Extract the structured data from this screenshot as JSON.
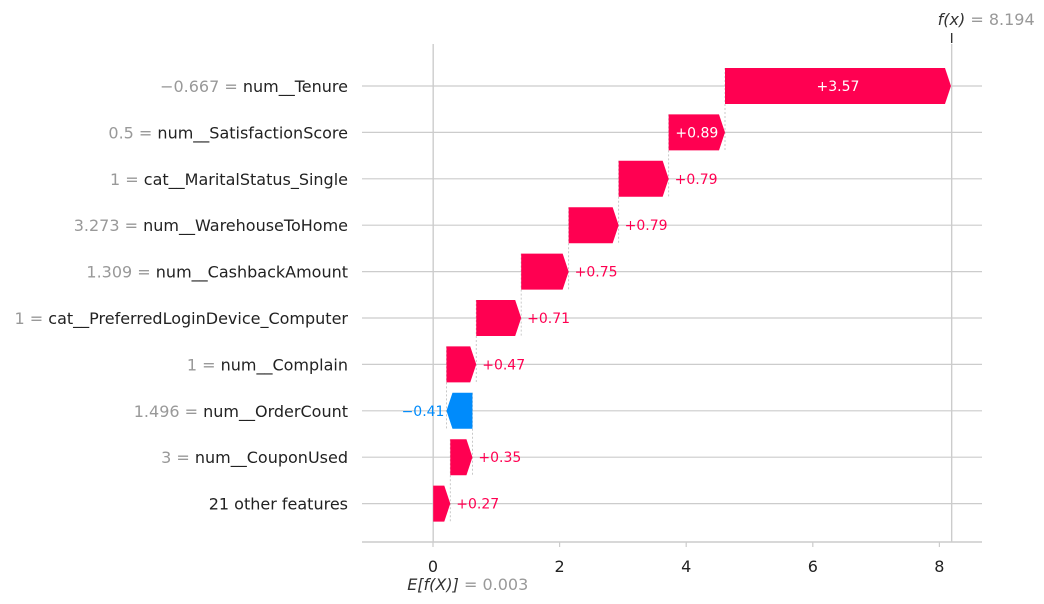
{
  "chart_data": {
    "type": "waterfall",
    "base_value_label": "E[f(X)]",
    "base_value": 0.003,
    "output_value_label": "f(x)",
    "output_value": 8.194,
    "xlim": [
      -1.1,
      8.7
    ],
    "xticks": [
      0,
      2,
      4,
      6,
      8
    ],
    "positive_color": "#ff0051",
    "negative_color": "#008bfb",
    "features": [
      {
        "value": "−0.667",
        "name": "num__Tenure",
        "contribution": 3.57,
        "label": "+3.57"
      },
      {
        "value": "0.5",
        "name": "num__SatisfactionScore",
        "contribution": 0.89,
        "label": "+0.89"
      },
      {
        "value": "1",
        "name": "cat__MaritalStatus_Single",
        "contribution": 0.79,
        "label": "+0.79"
      },
      {
        "value": "3.273",
        "name": "num__WarehouseToHome",
        "contribution": 0.79,
        "label": "+0.79"
      },
      {
        "value": "1.309",
        "name": "num__CashbackAmount",
        "contribution": 0.75,
        "label": "+0.75"
      },
      {
        "value": "1",
        "name": "cat__PreferredLoginDevice_Computer",
        "contribution": 0.71,
        "label": "+0.71"
      },
      {
        "value": "1",
        "name": "num__Complain",
        "contribution": 0.47,
        "label": "+0.47"
      },
      {
        "value": "1.496",
        "name": "num__OrderCount",
        "contribution": -0.41,
        "label": "−0.41"
      },
      {
        "value": "3",
        "name": "num__CouponUsed",
        "contribution": 0.35,
        "label": "+0.35"
      },
      {
        "value": "",
        "name": "21 other features",
        "contribution": 0.27,
        "label": "+0.27"
      }
    ]
  }
}
